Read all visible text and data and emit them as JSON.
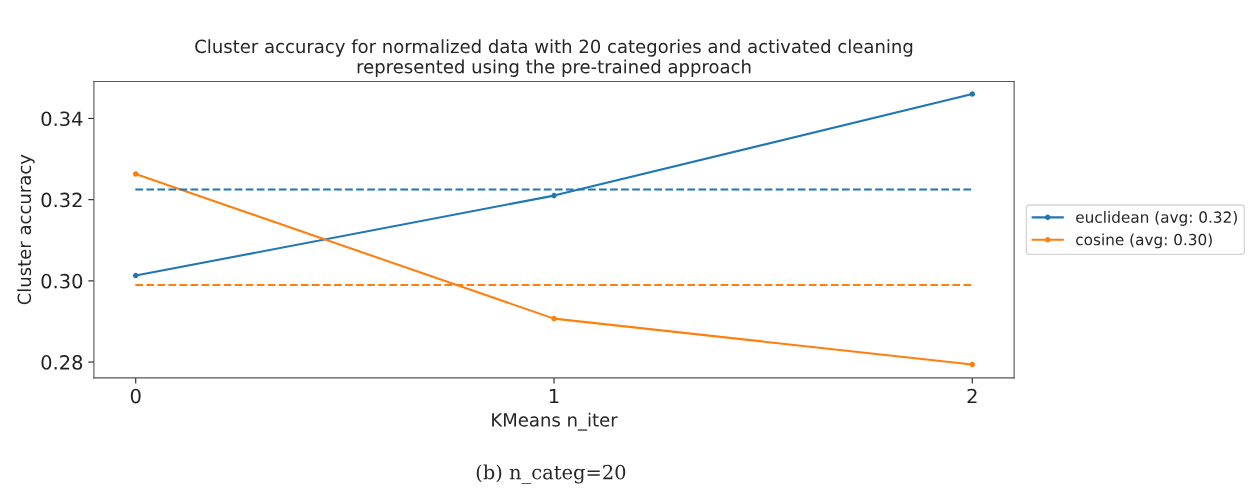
{
  "chart_data": {
    "type": "line",
    "title": "Cluster accuracy for normalized data with 20 categories and activated cleaning\nrepresented using the pre-trained approach",
    "xlabel": "KMeans n_iter",
    "ylabel": "Cluster accuracy",
    "x": [
      0,
      1,
      2
    ],
    "series": [
      {
        "name": "euclidean (avg: 0.32)",
        "color": "#1f77b4",
        "values": [
          0.3013,
          0.321,
          0.346
        ]
      },
      {
        "name": "cosine (avg: 0.30)",
        "color": "#ff7f0e",
        "values": [
          0.3263,
          0.2907,
          0.2794
        ]
      }
    ],
    "ref_lines": [
      {
        "axis": "y",
        "value": 0.3225,
        "color": "#1f77b4",
        "line_style": "dashed"
      },
      {
        "axis": "y",
        "value": 0.299,
        "color": "#ff7f0e",
        "line_style": "dashed"
      }
    ],
    "xlim": [
      -0.1,
      2.1
    ],
    "ylim": [
      0.2761,
      0.3491
    ],
    "xticks": [
      0,
      1,
      2
    ],
    "yticks": [
      0.28,
      {
        "value": 0.3,
        "label": "0.30"
      },
      0.32,
      0.34
    ],
    "annotations": [
      "(b) n_categ=20"
    ],
    "legend": "right",
    "marker": "circle",
    "line_style": "solid",
    "grid": false
  }
}
